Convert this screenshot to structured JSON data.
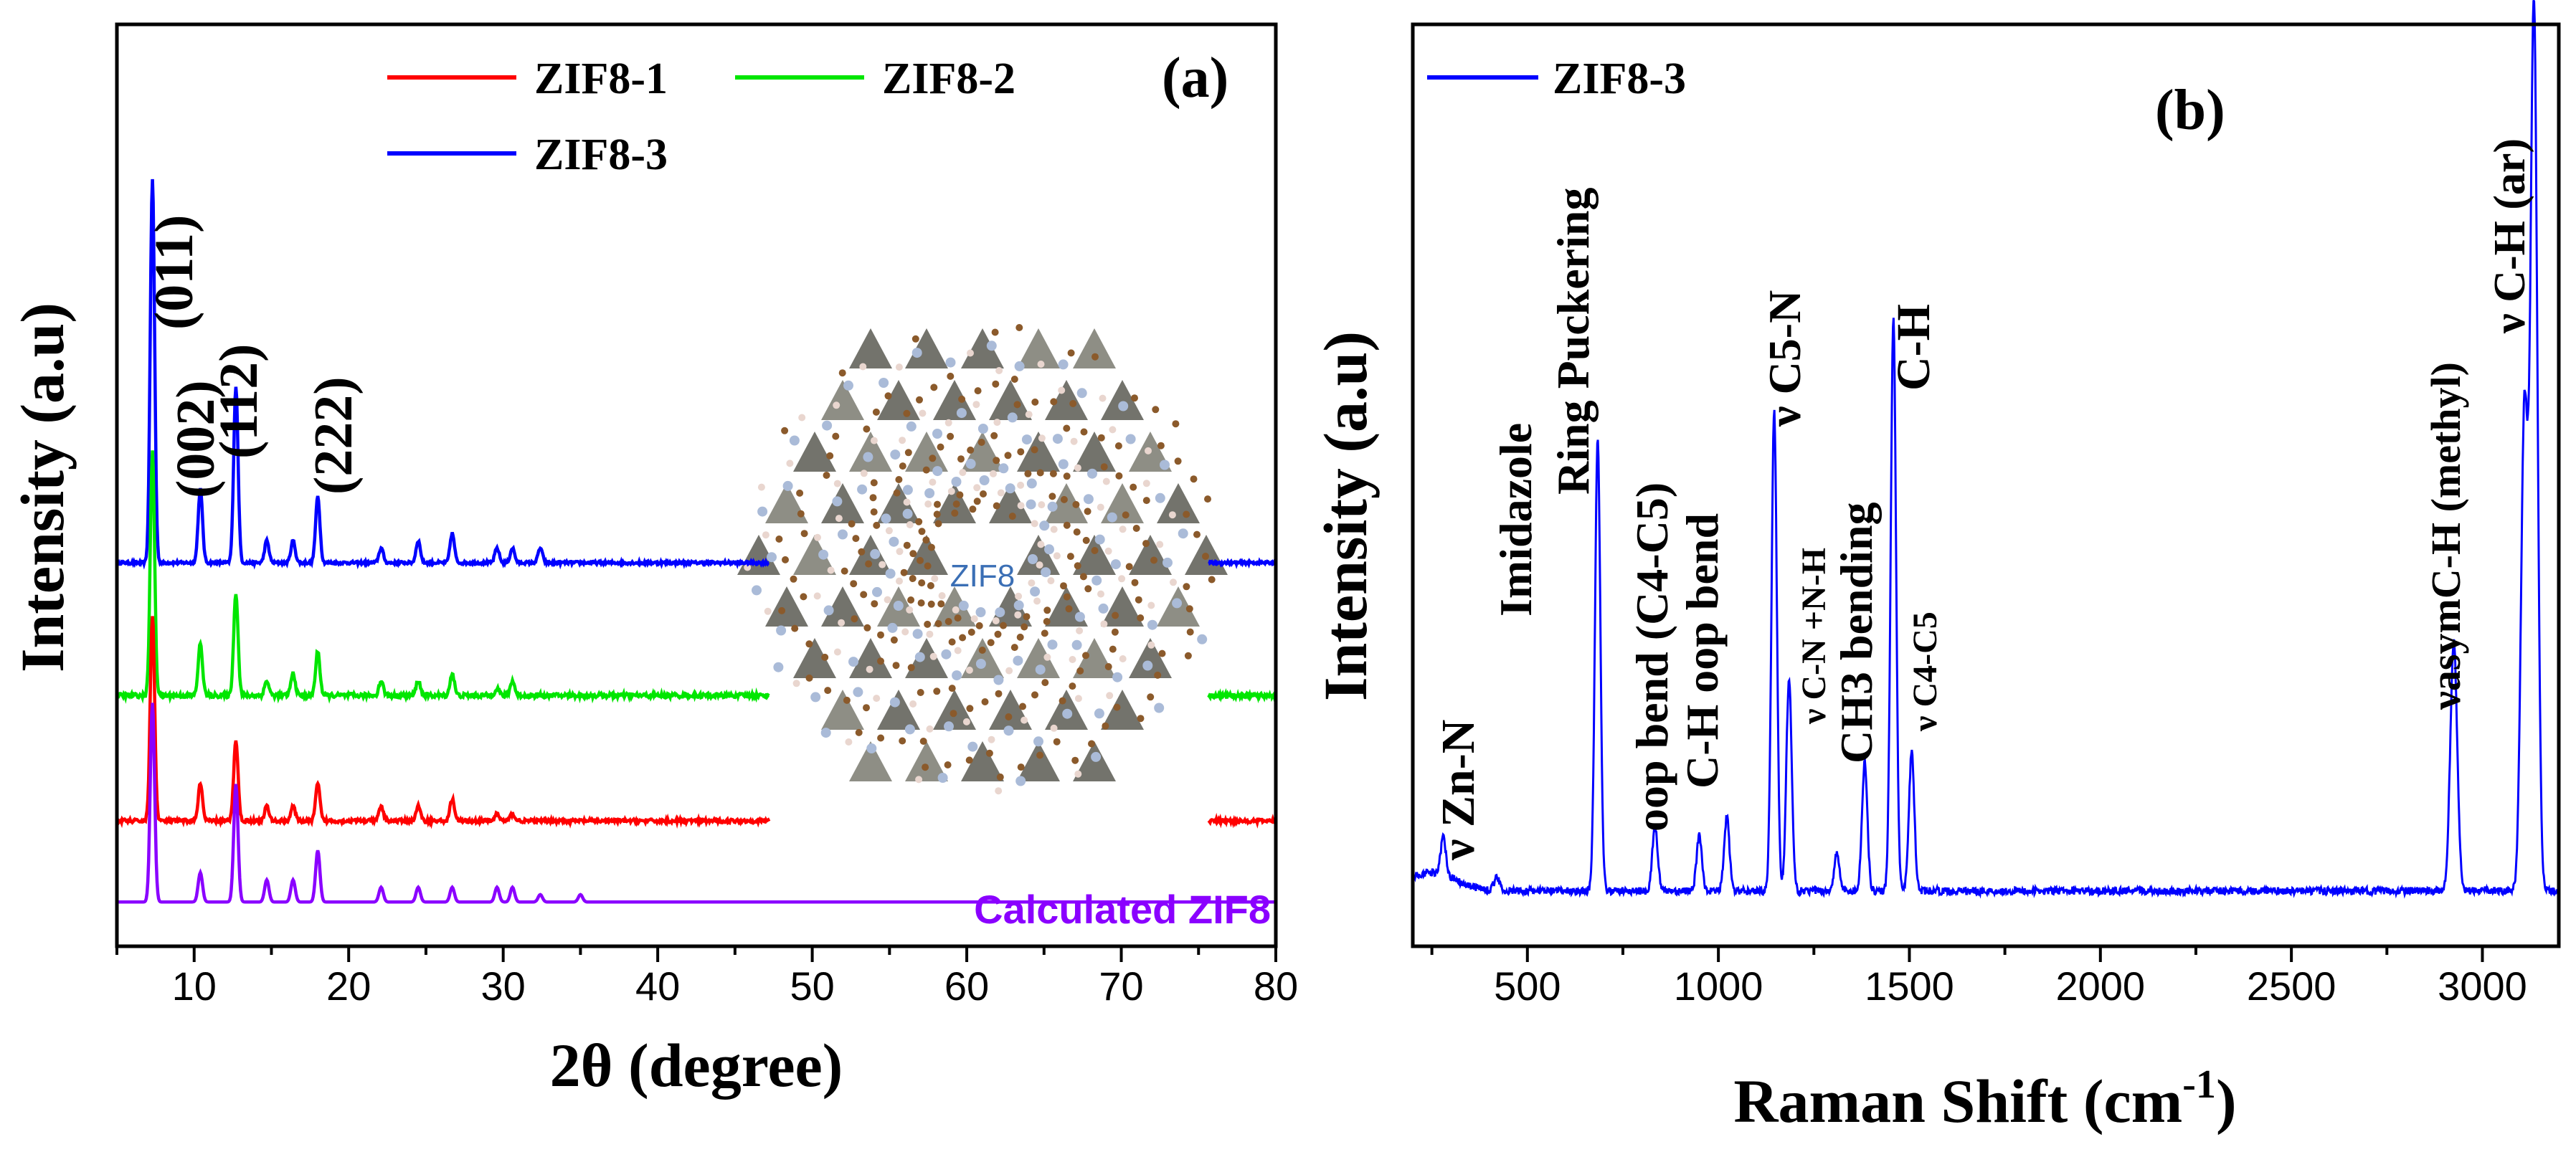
{
  "chart_data": [
    {
      "type": "line",
      "panel_label": "(a)",
      "title": "",
      "xlabel": "2θ (degree)",
      "ylabel": "Intensity (a.u)",
      "xlim": [
        5,
        80
      ],
      "ylim": [
        0,
        1.25
      ],
      "xticks": [
        10,
        20,
        30,
        40,
        50,
        60,
        70,
        80
      ],
      "legend_position": "top-right",
      "series": [
        {
          "name": "ZIF8-3",
          "color": "#0000ff",
          "offset": 0.52,
          "noise": 0.004,
          "gap": [
            47.2,
            75.6
          ],
          "peaks": [
            [
              7.3,
              0.52
            ],
            [
              10.4,
              0.1
            ],
            [
              12.7,
              0.24
            ],
            [
              14.7,
              0.03
            ],
            [
              16.4,
              0.03
            ],
            [
              18.0,
              0.09
            ],
            [
              22.1,
              0.02
            ],
            [
              24.5,
              0.03
            ],
            [
              26.7,
              0.04
            ],
            [
              29.6,
              0.02
            ],
            [
              30.6,
              0.02
            ],
            [
              32.4,
              0.02
            ]
          ]
        },
        {
          "name": "ZIF8-2",
          "color": "#00e600",
          "offset": 0.34,
          "noise": 0.006,
          "gap": [
            47.2,
            75.6
          ],
          "peaks": [
            [
              7.3,
              0.33
            ],
            [
              10.4,
              0.07
            ],
            [
              12.7,
              0.14
            ],
            [
              14.7,
              0.02
            ],
            [
              16.4,
              0.03
            ],
            [
              18.0,
              0.06
            ],
            [
              22.1,
              0.02
            ],
            [
              24.5,
              0.02
            ],
            [
              26.7,
              0.03
            ],
            [
              29.6,
              0.01
            ],
            [
              30.6,
              0.02
            ]
          ]
        },
        {
          "name": "ZIF8-1",
          "color": "#ff0000",
          "offset": 0.17,
          "noise": 0.005,
          "gap": [
            47.2,
            75.6
          ],
          "peaks": [
            [
              7.3,
              0.28
            ],
            [
              10.4,
              0.05
            ],
            [
              12.7,
              0.11
            ],
            [
              14.7,
              0.02
            ],
            [
              16.4,
              0.02
            ],
            [
              18.0,
              0.05
            ],
            [
              22.1,
              0.02
            ],
            [
              24.5,
              0.02
            ],
            [
              26.7,
              0.03
            ],
            [
              29.6,
              0.01
            ],
            [
              30.6,
              0.01
            ]
          ]
        },
        {
          "name": "Calculated ZIF8",
          "color": "#8a00ff",
          "offset": 0.06,
          "noise": 0.0,
          "gap": null,
          "peaks": [
            [
              7.3,
              0.27
            ],
            [
              10.4,
              0.04
            ],
            [
              12.7,
              0.16
            ],
            [
              14.7,
              0.03
            ],
            [
              16.4,
              0.03
            ],
            [
              18.0,
              0.07
            ],
            [
              22.1,
              0.02
            ],
            [
              24.5,
              0.02
            ],
            [
              26.7,
              0.02
            ],
            [
              29.6,
              0.02
            ],
            [
              30.6,
              0.02
            ],
            [
              32.4,
              0.01
            ],
            [
              35.0,
              0.01
            ]
          ]
        }
      ],
      "legend": [
        {
          "name": "ZIF8-1",
          "color": "#ff0000"
        },
        {
          "name": "ZIF8-2",
          "color": "#00e600"
        },
        {
          "name": "ZIF8-3",
          "color": "#0000ff"
        }
      ],
      "annotations": [
        {
          "text": "(011)",
          "x": 7.3
        },
        {
          "text": "(002)",
          "x": 10.4
        },
        {
          "text": "(112)",
          "x": 12.7
        },
        {
          "text": "(222)",
          "x": 18.0
        },
        {
          "text": "Calculated ZIF8",
          "color": "#8a00ff"
        }
      ],
      "inset_label": "ZIF8"
    },
    {
      "type": "line",
      "panel_label": "(b)",
      "title": "",
      "xlabel": "Raman Shift (cm",
      "xlabel_sup": "-1",
      "xlabel_end": ")",
      "ylabel": "Intensity (a.u)",
      "xlim": [
        200,
        3200
      ],
      "ylim": [
        0,
        1.0
      ],
      "xticks": [
        500,
        1000,
        1500,
        2000,
        2500,
        3000
      ],
      "legend_position": "top-left",
      "series": [
        {
          "name": "ZIF8-3",
          "color": "#0000ff",
          "baseline": 0.06,
          "noise": 0.008,
          "peaks": [
            [
              280,
              0.04
            ],
            [
              420,
              0.015
            ],
            [
              684,
              0.49
            ],
            [
              834,
              0.07
            ],
            [
              950,
              0.06
            ],
            [
              1022,
              0.08
            ],
            [
              1146,
              0.52
            ],
            [
              1185,
              0.23
            ],
            [
              1310,
              0.04
            ],
            [
              1383,
              0.14
            ],
            [
              1458,
              0.62
            ],
            [
              1506,
              0.15
            ],
            [
              2925,
              0.27
            ],
            [
              3110,
              0.52
            ],
            [
              3135,
              0.96
            ]
          ]
        }
      ],
      "legend": [
        {
          "name": "ZIF8-3",
          "color": "#0000ff"
        }
      ],
      "annotations": [
        {
          "text": "ν Zn-N",
          "x": 280
        },
        {
          "text": "Imidazole",
          "x": 600
        },
        {
          "text": "Ring Puckering",
          "x": 684
        },
        {
          "text": "oop bend (C4-C5)",
          "x": 834
        },
        {
          "text": "C-H oop bend",
          "x": 950
        },
        {
          "text": "ν C5-N",
          "x": 1146
        },
        {
          "text": "ν C-N +N-H",
          "x": 1185
        },
        {
          "text": "CH3 bending",
          "x": 1383
        },
        {
          "text": "C-H",
          "x": 1458
        },
        {
          "text": "ν C4-C5",
          "x": 1506
        },
        {
          "text": "νasymC-H (methyl)",
          "x": 2925
        },
        {
          "text": "ν C-H (ar)",
          "x": 3135
        }
      ]
    }
  ]
}
